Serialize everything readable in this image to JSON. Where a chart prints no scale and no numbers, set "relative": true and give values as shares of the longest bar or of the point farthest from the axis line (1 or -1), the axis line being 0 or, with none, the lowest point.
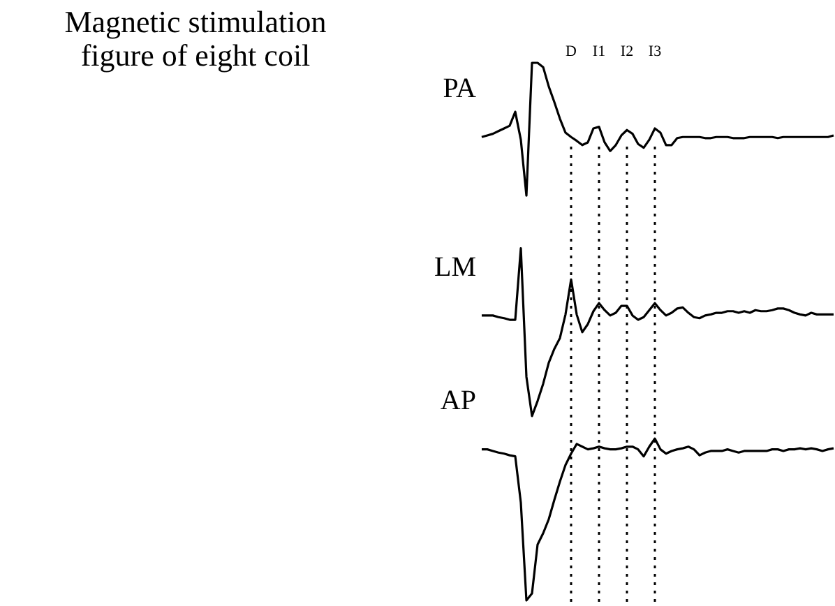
{
  "chart_data": {
    "type": "line",
    "title": "Magnetic stimulation\nfigure of eight coil",
    "relative": true,
    "grid": "x",
    "legend": false,
    "marker": "none",
    "line_style": "solid",
    "categories": [
      null,
      null,
      null,
      null,
      null,
      null,
      null,
      null,
      null,
      null,
      null,
      null,
      null,
      null,
      null,
      null,
      null,
      null,
      null,
      null,
      null,
      null,
      null,
      null,
      null,
      null,
      null,
      null,
      null,
      null,
      null,
      null,
      null,
      null,
      null,
      null,
      null,
      null,
      null,
      null,
      null,
      null,
      null,
      null,
      null,
      null,
      null,
      null,
      null,
      null,
      null,
      null,
      null,
      null,
      null,
      null,
      null,
      null,
      null,
      null,
      null,
      null,
      null,
      null
    ],
    "series": [
      {
        "name": "PA",
        "color": "#000000",
        "values": [
          0.862,
          0.865,
          0.868,
          0.873,
          0.878,
          0.883,
          0.909,
          0.857,
          0.753,
          1.0,
          1.0,
          0.992,
          0.956,
          0.927,
          0.896,
          0.87,
          0.862,
          0.855,
          0.847,
          0.852,
          0.878,
          0.881,
          0.852,
          0.836,
          0.847,
          0.865,
          0.875,
          0.868,
          0.849,
          0.842,
          0.857,
          0.878,
          0.87,
          0.847,
          0.847,
          0.86,
          0.862,
          0.862,
          0.862,
          0.862,
          0.86,
          0.86,
          0.862,
          0.862,
          0.862,
          0.86,
          0.86,
          0.86,
          0.862,
          0.862,
          0.862,
          0.862,
          0.862,
          0.86,
          0.862,
          0.862,
          0.862,
          0.862,
          0.862,
          0.862,
          0.862,
          0.862,
          0.862,
          0.865
        ]
      },
      {
        "name": "LM",
        "color": "#000000",
        "values": [
          0.53,
          0.53,
          0.53,
          0.527,
          0.525,
          0.522,
          0.522,
          0.655,
          0.416,
          0.343,
          0.371,
          0.403,
          0.442,
          0.468,
          0.488,
          0.532,
          0.597,
          0.532,
          0.499,
          0.514,
          0.538,
          0.553,
          0.54,
          0.53,
          0.535,
          0.548,
          0.548,
          0.53,
          0.522,
          0.527,
          0.54,
          0.553,
          0.54,
          0.53,
          0.535,
          0.543,
          0.545,
          0.535,
          0.527,
          0.525,
          0.53,
          0.532,
          0.535,
          0.535,
          0.538,
          0.538,
          0.535,
          0.538,
          0.535,
          0.54,
          0.538,
          0.538,
          0.54,
          0.543,
          0.543,
          0.54,
          0.535,
          0.532,
          0.53,
          0.535,
          0.532,
          0.532,
          0.532,
          0.532
        ]
      },
      {
        "name": "AP",
        "color": "#000000",
        "values": [
          0.281,
          0.281,
          0.278,
          0.275,
          0.273,
          0.27,
          0.268,
          0.182,
          0.0,
          0.013,
          0.104,
          0.125,
          0.151,
          0.187,
          0.221,
          0.252,
          0.273,
          0.291,
          0.286,
          0.281,
          0.283,
          0.286,
          0.283,
          0.281,
          0.281,
          0.283,
          0.286,
          0.286,
          0.281,
          0.268,
          0.286,
          0.301,
          0.281,
          0.273,
          0.278,
          0.281,
          0.283,
          0.286,
          0.281,
          0.27,
          0.275,
          0.278,
          0.278,
          0.278,
          0.281,
          0.278,
          0.275,
          0.278,
          0.278,
          0.278,
          0.278,
          0.278,
          0.281,
          0.281,
          0.278,
          0.281,
          0.281,
          0.283,
          0.281,
          0.283,
          0.281,
          0.278,
          0.281,
          0.283
        ]
      }
    ],
    "annotations": [
      "D",
      "I1",
      "I2",
      "I3"
    ]
  }
}
